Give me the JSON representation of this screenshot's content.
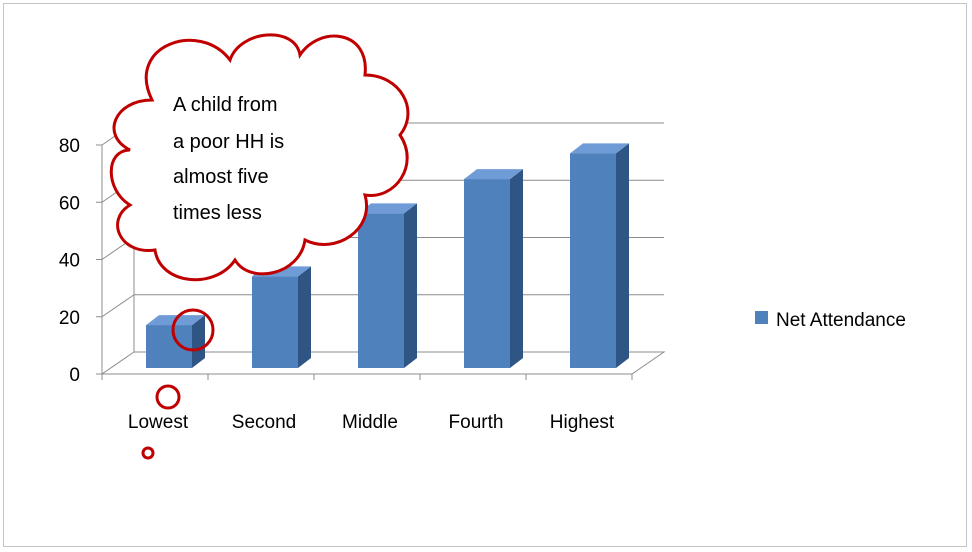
{
  "chart_data": {
    "type": "bar",
    "style": "3d-column",
    "categories": [
      "Lowest",
      "Second",
      "Middle",
      "Fourth",
      "Highest"
    ],
    "series": [
      {
        "name": "Net Attendance",
        "values": [
          15,
          32,
          54,
          66,
          75
        ],
        "color": "#4f81bd"
      }
    ],
    "ylim": [
      0,
      80
    ],
    "yticks": [
      "0",
      "20",
      "40",
      "60",
      "80"
    ],
    "grid": true,
    "legend": "right",
    "annotation": {
      "shape": "thought-bubble",
      "lines": [
        "A child from",
        "a poor HH is",
        "almost five",
        "times less"
      ],
      "target_category": "Lowest",
      "color": "#c00000"
    }
  }
}
